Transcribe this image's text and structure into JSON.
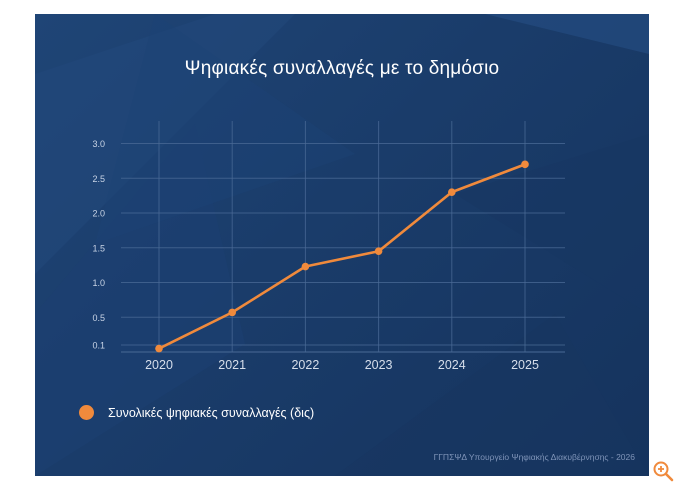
{
  "colors": {
    "panel_bg": "#1a3c6a",
    "line": "#f08a3c",
    "grid": "#4a6a96",
    "text": "#ffffff",
    "muted": "#7f94b8",
    "zoom_icon": "#f08a3c"
  },
  "footer": {
    "text": "ΓΓΠΣΨΔ Υπουργείο Ψηφιακής Διακυβέρνησης - 2026"
  },
  "zoom": {
    "icon": "zoom-in-icon"
  },
  "chart_data": {
    "type": "line",
    "title": "Ψηφιακές συναλλαγές με το δημόσιο",
    "xlabel": "",
    "ylabel": "",
    "x": [
      "2020",
      "2021",
      "2022",
      "2023",
      "2024",
      "2025"
    ],
    "series": [
      {
        "name": "Συνολικές ψηφιακές συναλλαγές (δις)",
        "values": [
          0.05,
          0.57,
          1.23,
          1.45,
          2.3,
          2.7
        ]
      }
    ],
    "yticks": [
      "3.0",
      "2.5",
      "2.0",
      "1.5",
      "1.0",
      "0.5",
      "0.1"
    ],
    "ylim": [
      0,
      3.0
    ],
    "grid": true,
    "legend": "bottom-left"
  }
}
